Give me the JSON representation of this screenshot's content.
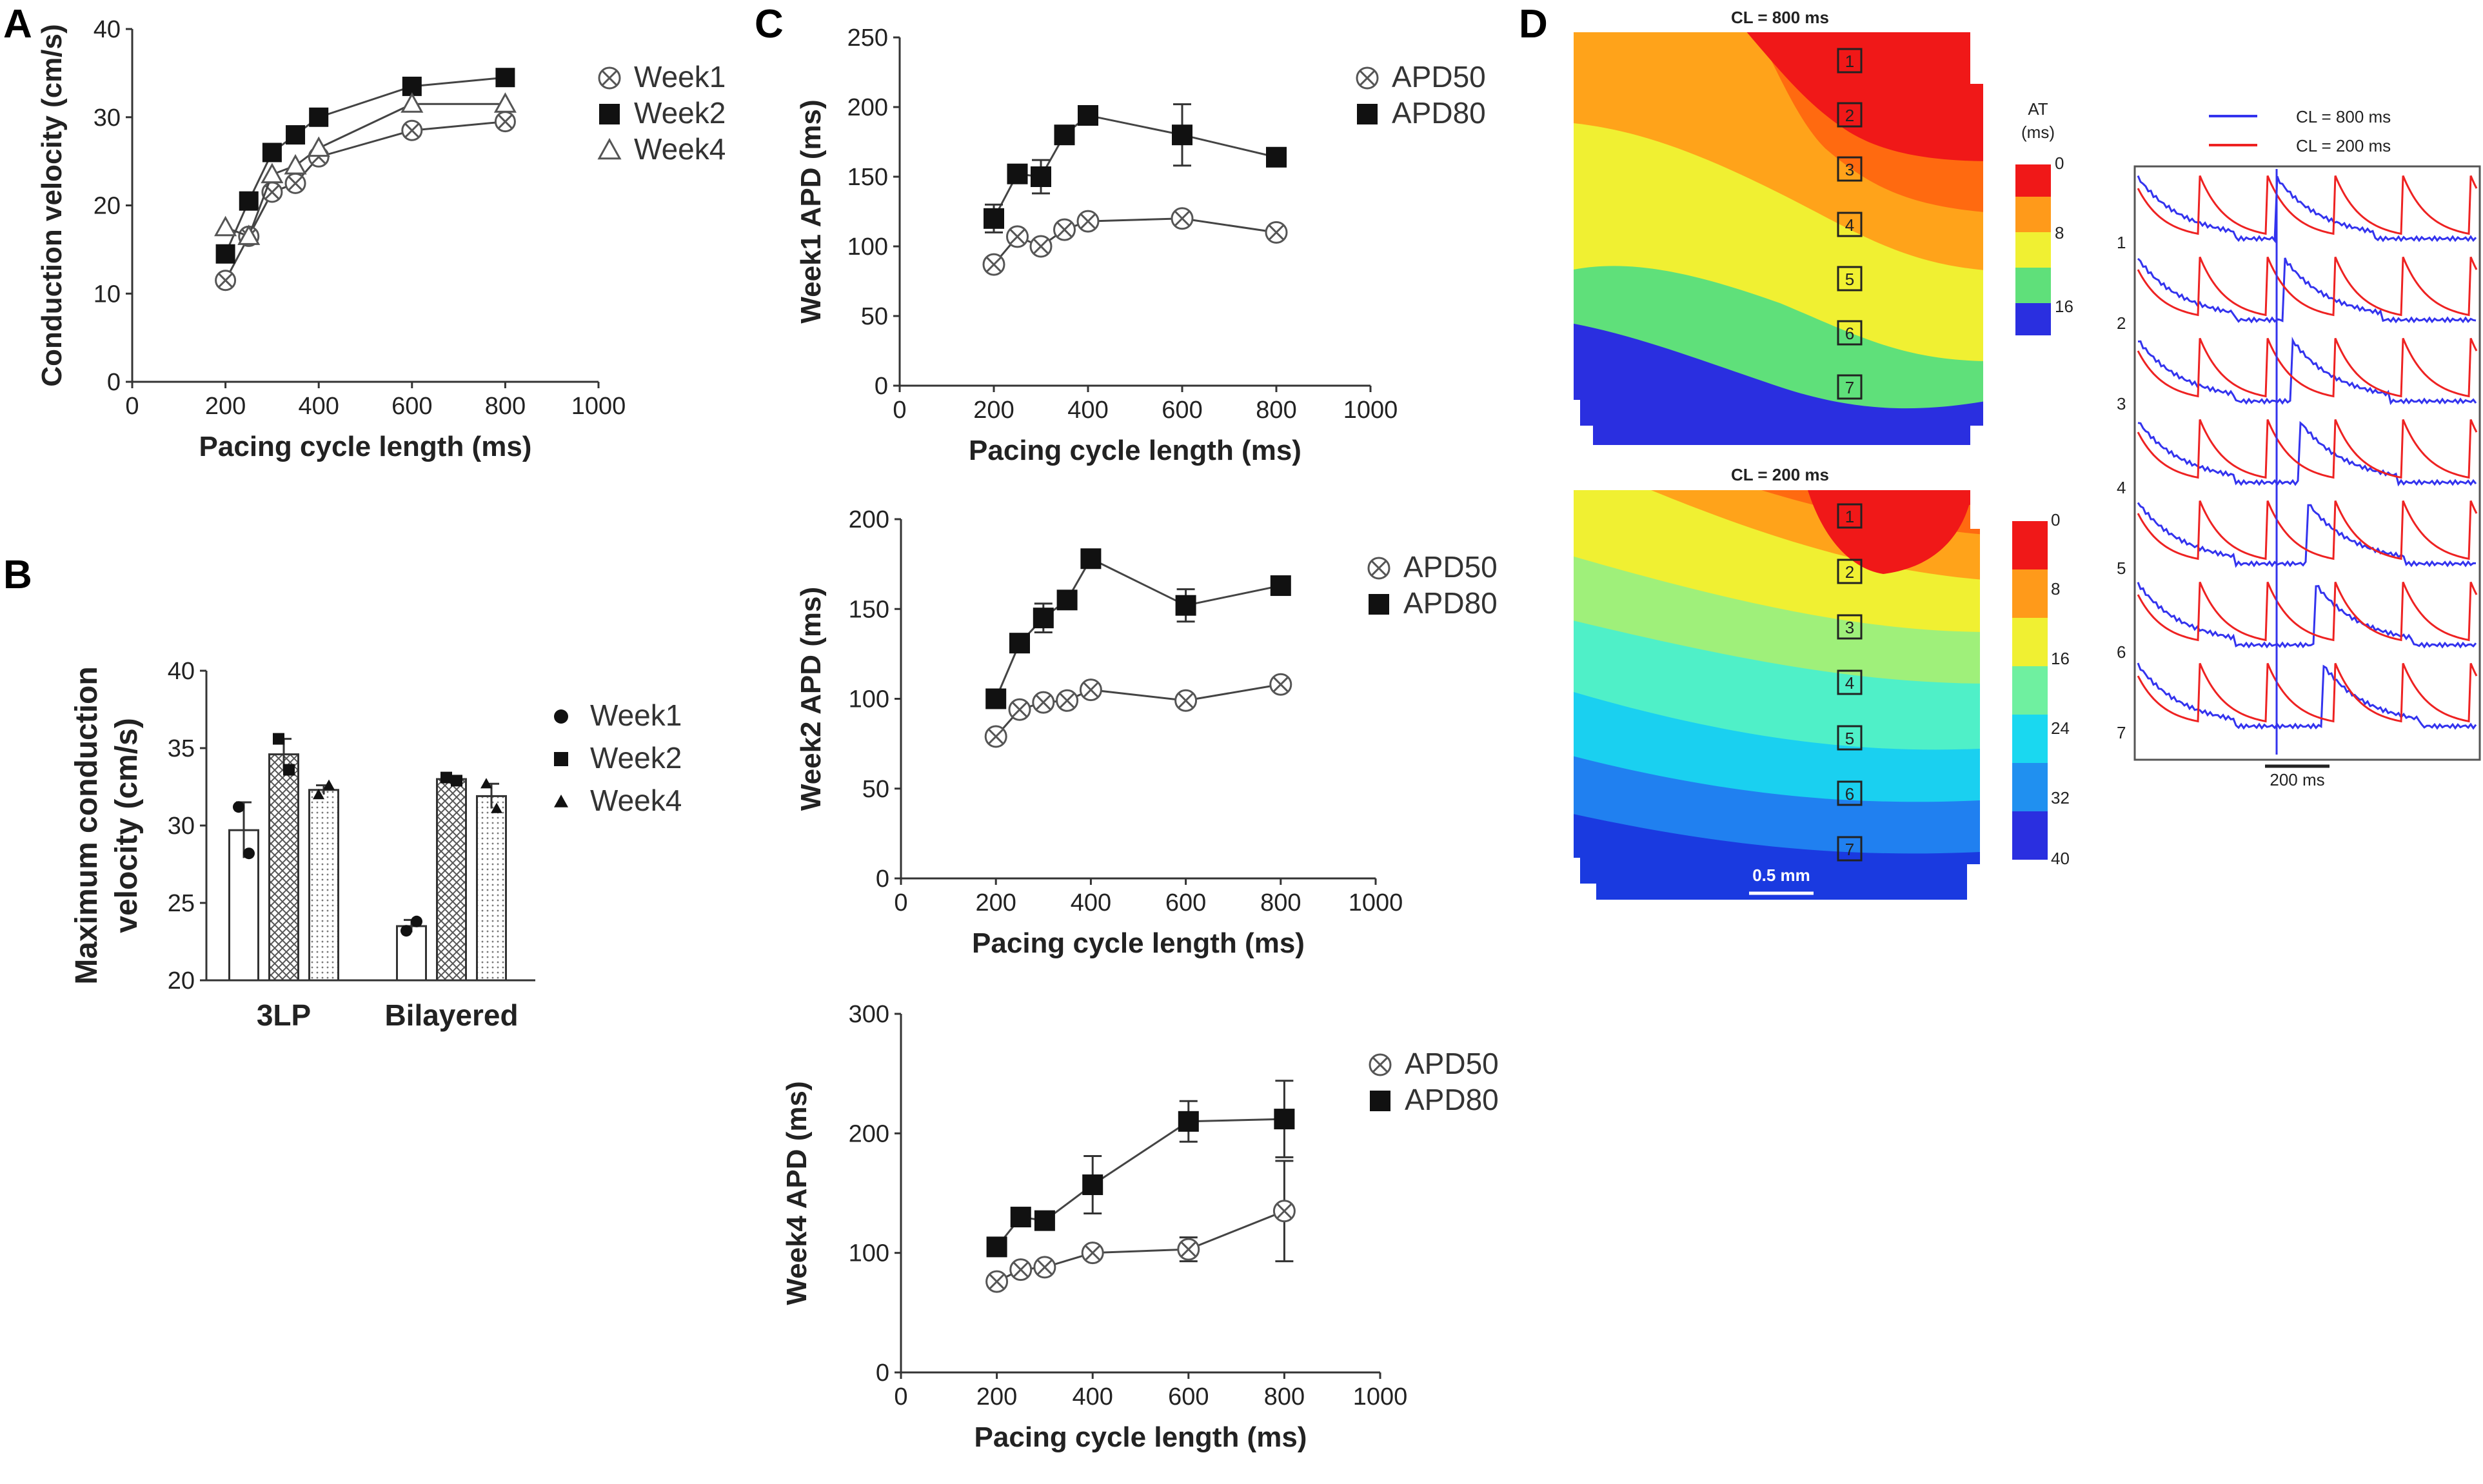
{
  "panels": {
    "A": "A",
    "B": "B",
    "C": "C",
    "D": "D"
  },
  "chart_data": [
    {
      "id": "A",
      "type": "line",
      "xlabel": "Pacing cycle length (ms)",
      "ylabel": "Conduction velocity (cm/s)",
      "xlim": [
        0,
        1000
      ],
      "ylim": [
        0,
        40
      ],
      "xticks": [
        "0",
        "200",
        "400",
        "600",
        "800",
        "1000"
      ],
      "yticks": [
        "0",
        "10",
        "20",
        "30",
        "40"
      ],
      "x": [
        200,
        250,
        300,
        350,
        400,
        600,
        800
      ],
      "series": [
        {
          "name": "Week1",
          "marker": "circle-x",
          "values": [
            11.5,
            16.5,
            21.5,
            22.5,
            25.5,
            28.5,
            29.5
          ]
        },
        {
          "name": "Week2",
          "marker": "square",
          "values": [
            14.5,
            20.5,
            26,
            28,
            30,
            33.5,
            34.5
          ]
        },
        {
          "name": "Week4",
          "marker": "triangle-open",
          "values": [
            17.5,
            16.5,
            23.5,
            24.5,
            26.5,
            31.5,
            31.5
          ]
        }
      ]
    },
    {
      "id": "B",
      "type": "bar",
      "ylabel": "Maximum conduction velocity (cm/s)",
      "ylim": [
        20,
        40
      ],
      "yticks": [
        "20",
        "25",
        "30",
        "35",
        "40"
      ],
      "categories": [
        "3LP",
        "Bilayered"
      ],
      "series": [
        {
          "name": "Week1",
          "marker": "dot",
          "values": [
            29.7,
            23.5
          ],
          "errors": [
            1.8,
            0.4
          ],
          "points": [
            [
              31.2,
              28.2
            ],
            [
              23.2,
              23.8
            ]
          ]
        },
        {
          "name": "Week2",
          "marker": "square",
          "values": [
            34.6,
            33.0
          ],
          "errors": [
            1.0,
            0.2
          ],
          "points": [
            [
              35.6,
              33.6
            ],
            [
              33.1,
              32.9
            ]
          ]
        },
        {
          "name": "Week4",
          "marker": "triangle",
          "values": [
            32.3,
            31.9
          ],
          "errors": [
            0.3,
            0.8
          ],
          "points": [
            [
              32.0,
              32.6
            ],
            [
              32.7,
              31.1
            ]
          ]
        }
      ]
    },
    {
      "id": "C1",
      "type": "line",
      "xlabel": "Pacing cycle length (ms)",
      "ylabel": "Week1 APD (ms)",
      "xlim": [
        0,
        1000
      ],
      "ylim": [
        0,
        250
      ],
      "xticks": [
        "0",
        "200",
        "400",
        "600",
        "800",
        "1000"
      ],
      "yticks": [
        "0",
        "50",
        "100",
        "150",
        "200",
        "250"
      ],
      "x": [
        200,
        250,
        300,
        350,
        400,
        600,
        800
      ],
      "series": [
        {
          "name": "APD50",
          "marker": "circle-x",
          "values": [
            87,
            107,
            100,
            112,
            118,
            120,
            110
          ],
          "errors": [
            0,
            0,
            0,
            0,
            0,
            0,
            0
          ]
        },
        {
          "name": "APD80",
          "marker": "square",
          "values": [
            120,
            152,
            150,
            180,
            194,
            180,
            164
          ],
          "errors": [
            10,
            6,
            12,
            6,
            0,
            22,
            0
          ]
        }
      ]
    },
    {
      "id": "C2",
      "type": "line",
      "xlabel": "Pacing cycle length (ms)",
      "ylabel": "Week2 APD (ms)",
      "xlim": [
        0,
        1000
      ],
      "ylim": [
        0,
        200
      ],
      "xticks": [
        "0",
        "200",
        "400",
        "600",
        "800",
        "1000"
      ],
      "yticks": [
        "0",
        "50",
        "100",
        "150",
        "200"
      ],
      "x": [
        200,
        250,
        300,
        350,
        400,
        600,
        800
      ],
      "series": [
        {
          "name": "APD50",
          "marker": "circle-x",
          "values": [
            79,
            94,
            98,
            99,
            105,
            99,
            108
          ],
          "errors": [
            0,
            0,
            0,
            0,
            0,
            0,
            0
          ]
        },
        {
          "name": "APD80",
          "marker": "square",
          "values": [
            100,
            131,
            145,
            155,
            178,
            152,
            163
          ],
          "errors": [
            0,
            0,
            8,
            0,
            0,
            9,
            0
          ]
        }
      ]
    },
    {
      "id": "C3",
      "type": "line",
      "xlabel": "Pacing cycle length (ms)",
      "ylabel": "Week4 APD (ms)",
      "xlim": [
        0,
        1000
      ],
      "ylim": [
        0,
        300
      ],
      "xticks": [
        "0",
        "200",
        "400",
        "600",
        "800",
        "1000"
      ],
      "yticks": [
        "0",
        "100",
        "200",
        "300"
      ],
      "x": [
        200,
        250,
        300,
        400,
        600,
        800
      ],
      "series": [
        {
          "name": "APD50",
          "marker": "circle-x",
          "values": [
            76,
            86,
            88,
            100,
            103,
            135
          ],
          "errors": [
            0,
            0,
            0,
            0,
            10,
            42
          ]
        },
        {
          "name": "APD80",
          "marker": "square",
          "values": [
            105,
            130,
            127,
            157,
            210,
            212
          ],
          "errors": [
            0,
            0,
            0,
            24,
            17,
            32
          ]
        }
      ]
    },
    {
      "id": "D",
      "type": "heatmap",
      "maps": [
        {
          "title": "CL = 800 ms",
          "colorbar_title": "AT",
          "colorbar_unit": "(ms)",
          "colorbar_ticks": [
            "0",
            "8",
            "16"
          ]
        },
        {
          "title": "CL = 200 ms",
          "colorbar_ticks": [
            "0",
            "8",
            "16",
            "24",
            "32",
            "40"
          ],
          "scalebar": "0.5 mm"
        }
      ],
      "site_labels": [
        "1",
        "2",
        "3",
        "4",
        "5",
        "6",
        "7"
      ],
      "traces": {
        "legend": [
          {
            "name": "CL = 800 ms",
            "color": "#3333ee"
          },
          {
            "name": "CL = 200 ms",
            "color": "#ee2222"
          }
        ],
        "row_labels": [
          "1",
          "2",
          "3",
          "4",
          "5",
          "6",
          "7"
        ],
        "scalebar": "200 ms"
      }
    }
  ]
}
